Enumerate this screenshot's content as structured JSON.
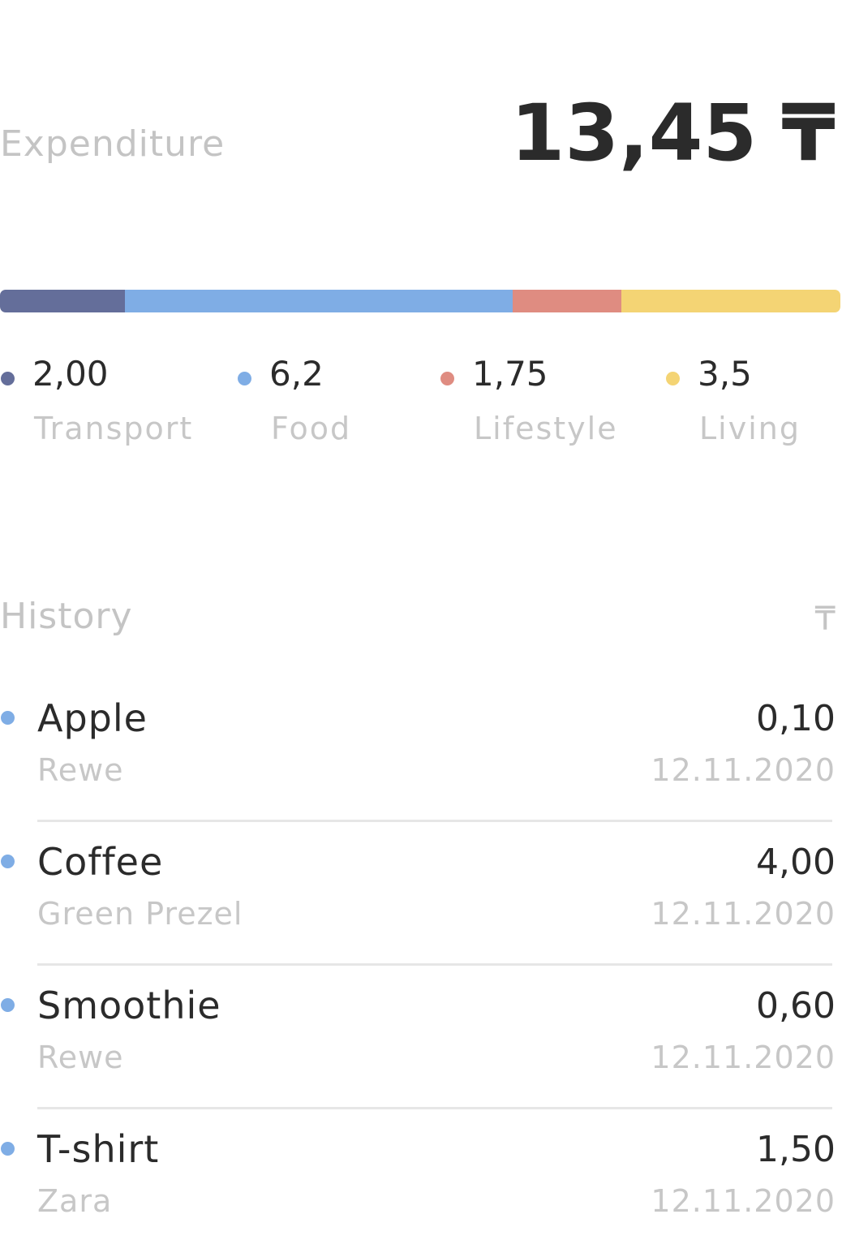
{
  "header": {
    "title": "Expenditure",
    "total": "13,45",
    "currency": "₸"
  },
  "colors": {
    "transport": "#646e9a",
    "food": "#7fade5",
    "lifestyle": "#df8c81",
    "living": "#f4d474"
  },
  "breakdown": {
    "categories": [
      {
        "key": "transport",
        "value": "2,00",
        "label": "Transport",
        "amount": 2.0,
        "color": "#646e9a"
      },
      {
        "key": "food",
        "value": "6,2",
        "label": "Food",
        "amount": 6.2,
        "color": "#7fade5"
      },
      {
        "key": "lifestyle",
        "value": "1,75",
        "label": "Lifestyle",
        "amount": 1.75,
        "color": "#df8c81"
      },
      {
        "key": "living",
        "value": "3,5",
        "label": "Living",
        "amount": 3.5,
        "color": "#f4d474"
      }
    ]
  },
  "history": {
    "title": "History",
    "currency": "₸",
    "items": [
      {
        "name": "Apple",
        "shop": "Rewe",
        "amount": "0,10",
        "date": "12.11.2020",
        "category": "food"
      },
      {
        "name": "Coffee",
        "shop": "Green Prezel",
        "amount": "4,00",
        "date": "12.11.2020",
        "category": "food"
      },
      {
        "name": "Smoothie",
        "shop": "Rewe",
        "amount": "0,60",
        "date": "12.11.2020",
        "category": "food"
      },
      {
        "name": "T-shirt",
        "shop": "Zara",
        "amount": "1,50",
        "date": "12.11.2020",
        "category": "food"
      }
    ]
  }
}
